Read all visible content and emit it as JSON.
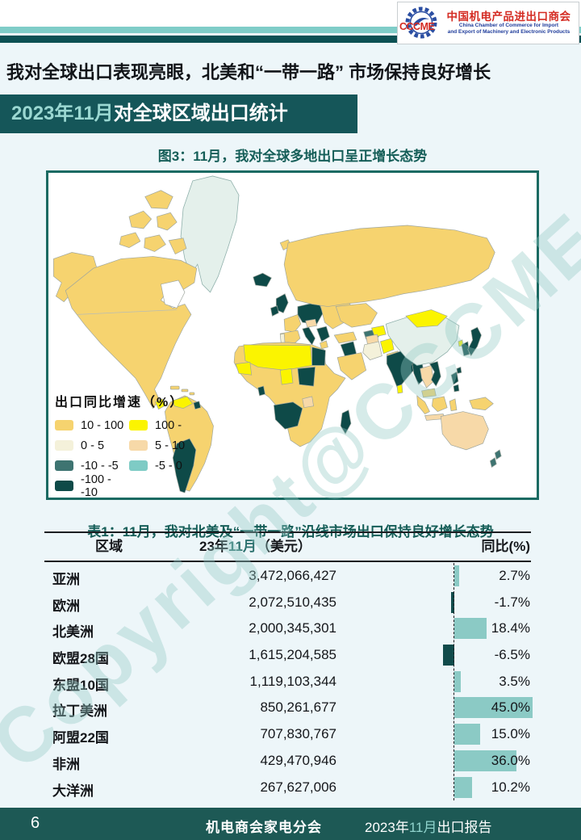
{
  "header": {
    "logo": {
      "abbr": "CCCME",
      "title_cn": "中国机电产品进出口商会",
      "subtitle_en_line1": "China Chamber of Commerce for Import",
      "subtitle_en_line2": "and Export of Machinery and Electronic Products"
    },
    "main_title": "我对全球出口表现亮眼，北美和“一带一路” 市场保持良好增长",
    "banner": {
      "highlight": "2023年11月",
      "rest": "对全球区域出口统计"
    }
  },
  "watermark": "Copyright@CCCME",
  "figure": {
    "title": "图3：11月，我对全球多地出口呈正增长态势",
    "legend": {
      "title": "出口同比增速（%）",
      "items": [
        {
          "label": "10 - 100",
          "color": "#F6D36F"
        },
        {
          "label": "100 -",
          "color": "#FBF400"
        },
        {
          "label": "0 - 5",
          "color": "#F4F1DA"
        },
        {
          "label": "5 - 10",
          "color": "#F7D9A8"
        },
        {
          "label": "-10 - -5",
          "color": "#3E7471"
        },
        {
          "label": "-5 - 0",
          "color": "#7ECBC5"
        },
        {
          "label": "-100 - -10",
          "color": "#0E4A48"
        }
      ]
    },
    "map_nodata_color": "#E4F0EB"
  },
  "table": {
    "title": "表1：11月，我对北美及“一带一路”沿线市场出口保持良好增长态势",
    "headers": {
      "region": "区域",
      "value_prefix": "23年",
      "value_highlight": "11月",
      "value_suffix": "（美元）",
      "yoy": "同比(%)"
    },
    "rows": [
      {
        "region": "亚洲",
        "value": "3,472,066,427",
        "yoy": "2.7%",
        "pct": 2.7
      },
      {
        "region": "欧洲",
        "value": "2,072,510,435",
        "yoy": "-1.7%",
        "pct": -1.7
      },
      {
        "region": "北美洲",
        "value": "2,000,345,301",
        "yoy": "18.4%",
        "pct": 18.4
      },
      {
        "region": "欧盟28国",
        "value": "1,615,204,585",
        "yoy": "-6.5%",
        "pct": -6.5
      },
      {
        "region": "东盟10国",
        "value": "1,119,103,344",
        "yoy": "3.5%",
        "pct": 3.5
      },
      {
        "region": "拉丁美洲",
        "value": "850,261,677",
        "yoy": "45.0%",
        "pct": 45.0
      },
      {
        "region": "阿盟22国",
        "value": "707,830,767",
        "yoy": "15.0%",
        "pct": 15.0
      },
      {
        "region": "非洲",
        "value": "429,470,946",
        "yoy": "36.0%",
        "pct": 36.0
      },
      {
        "region": "大洋洲",
        "value": "267,627,006",
        "yoy": "10.2%",
        "pct": 10.2
      }
    ],
    "bar_colors": {
      "positive": "#8BCAC5",
      "negative": "#114B4B"
    }
  },
  "footer": {
    "page_number": "6",
    "center": "机电商会家电分会",
    "right_prefix": "2023年",
    "right_highlight": "11月",
    "right_suffix": "出口报告"
  },
  "colors": {
    "page_background": "#EDF6F9",
    "header_bar_light": "#7FCDC8",
    "header_bar_dark": "#0C5154",
    "banner_background": "#155659",
    "banner_highlight_text": "#9BD8D2",
    "heading_teal": "#155E58",
    "footer_background": "#1D5955",
    "map_border": "#1B6A62"
  },
  "chart_data": [
    {
      "type": "heatmap",
      "subtype": "world-choropleth",
      "title": "图3：11月，我对全球多地出口呈正增长态势",
      "metric": "出口同比增速（%）",
      "legend_position": "bottom-left",
      "buckets": [
        {
          "range": "10 - 100",
          "color": "#F6D36F"
        },
        {
          "range": "100 -",
          "color": "#FBF400"
        },
        {
          "range": "0 - 5",
          "color": "#F4F1DA"
        },
        {
          "range": "5 - 10",
          "color": "#F7D9A8"
        },
        {
          "range": "-10 - -5",
          "color": "#3E7471"
        },
        {
          "range": "-5 - 0",
          "color": "#7ECBC5"
        },
        {
          "range": "-100 - -10",
          "color": "#0E4A48"
        }
      ],
      "notable_regions": {
        "10 - 100": [
          "加拿大",
          "美国",
          "墨西哥",
          "巴西",
          "俄罗斯",
          "法国",
          "西班牙",
          "土耳其",
          "沙特",
          "哈萨克斯坦",
          "南非",
          "马来西亚",
          "印尼"
        ],
        "100 -": [
          "蒙古",
          "阿尔及利亚",
          "利比亚",
          "委内瑞拉",
          "阿富汗",
          "乌兹别克斯坦"
        ],
        "5 - 10": [
          "澳大利亚",
          "芬兰",
          "泰国"
        ],
        "-100 - -10": [
          "阿根廷",
          "印度",
          "日本",
          "英国",
          "德国",
          "意大利",
          "冰岛",
          "埃及",
          "苏丹",
          "缅甸",
          "马达加斯加",
          "菲律宾"
        ],
        "no-data": [
          "中国",
          "格陵兰"
        ]
      }
    },
    {
      "type": "bar",
      "orientation": "horizontal",
      "title": "表1：11月，我对北美及“一带一路”沿线市场出口保持良好增长态势",
      "categories": [
        "亚洲",
        "欧洲",
        "北美洲",
        "欧盟28国",
        "东盟10国",
        "拉丁美洲",
        "阿盟22国",
        "非洲",
        "大洋洲"
      ],
      "values_usd": [
        3472066427,
        2072510435,
        2000345301,
        1615204585,
        1119103344,
        850261677,
        707830767,
        429470946,
        267627006
      ],
      "yoy_percent": [
        2.7,
        -1.7,
        18.4,
        -6.5,
        3.5,
        45.0,
        15.0,
        36.0,
        10.2
      ],
      "xlabel": "同比(%)",
      "ylabel": "区域"
    }
  ]
}
